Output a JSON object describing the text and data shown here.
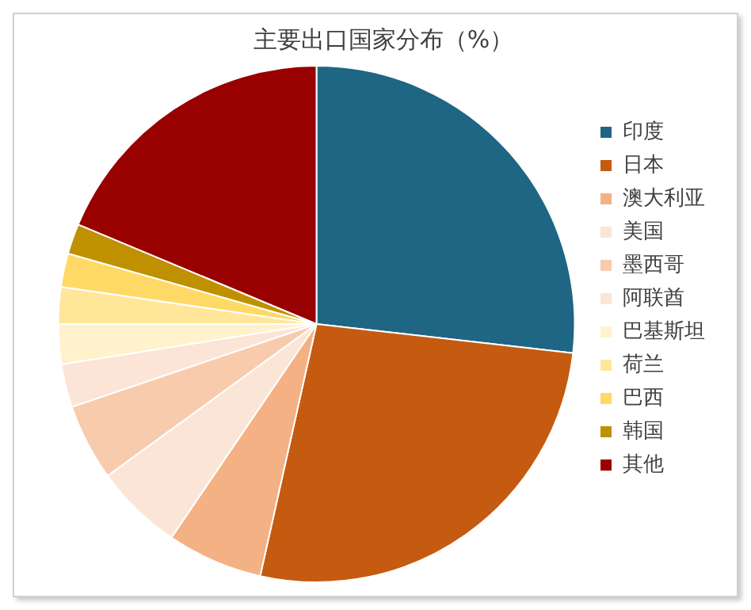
{
  "chart_data": {
    "type": "pie",
    "title": "主要出口国家分布（%）",
    "categories": [
      "印度",
      "日本",
      "澳大利亚",
      "美国",
      "墨西哥",
      "阿联酋",
      "巴基斯坦",
      "荷兰",
      "巴西",
      "韩国",
      "其他"
    ],
    "values": [
      26.8,
      26.7,
      6.0,
      5.5,
      4.8,
      2.7,
      2.5,
      2.3,
      2.1,
      1.9,
      18.7
    ],
    "colors": [
      "#1f6584",
      "#c55a11",
      "#f4b183",
      "#fbe5d6",
      "#f8cbad",
      "#fce4d6",
      "#fff2cc",
      "#ffe699",
      "#ffd966",
      "#bf9000",
      "#990000"
    ],
    "legend": "right"
  }
}
